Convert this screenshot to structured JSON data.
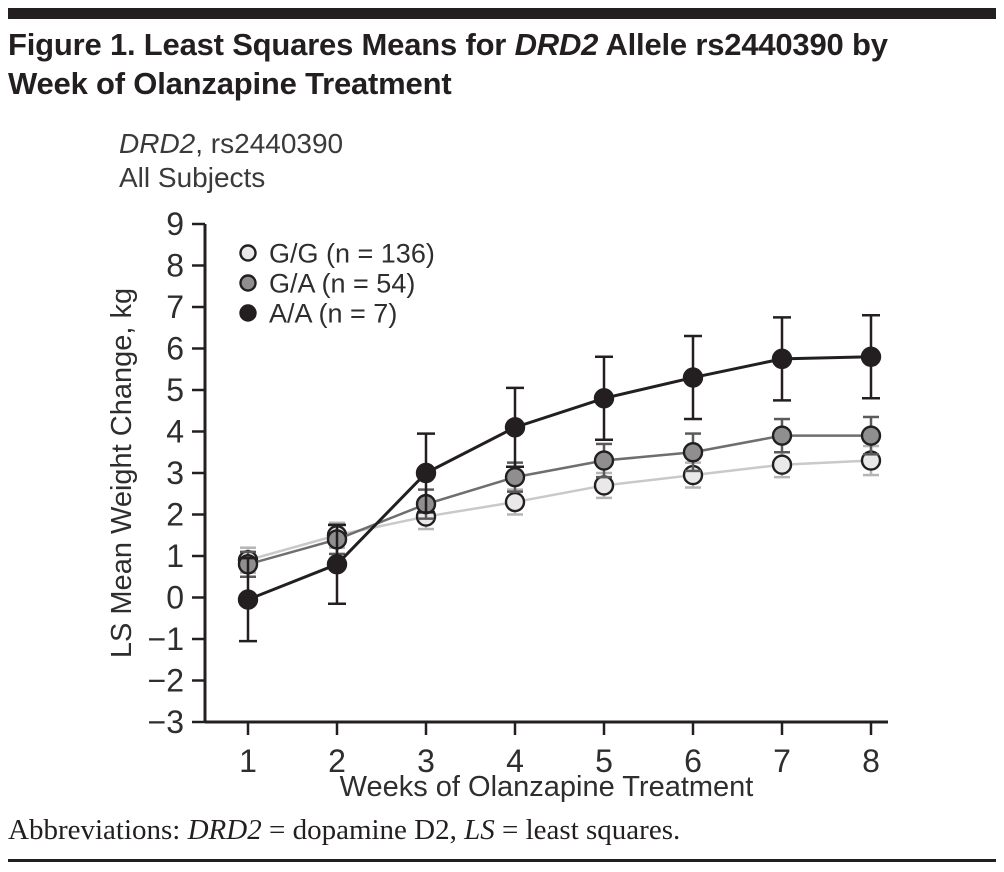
{
  "figure": {
    "title_part1": "Figure 1. Least Squares Means for ",
    "title_gene": "DRD2",
    "title_part2": " Allele rs2440390 by",
    "title_line2": "Week of Olanzapine Treatment"
  },
  "footnote": {
    "label": "Abbreviations: ",
    "gene": "DRD2",
    "mid": " = dopamine D2, ",
    "ls": "LS",
    "end": " = least squares."
  },
  "chart_data": {
    "type": "line",
    "title_gene": "DRD2",
    "title_rest": ", rs2440390",
    "subtitle": "All Subjects",
    "xlabel": "Weeks of Olanzapine Treatment",
    "ylabel": "LS Mean Weight Change, kg",
    "x": [
      1,
      2,
      3,
      4,
      5,
      6,
      7,
      8
    ],
    "ylim": [
      -3,
      9
    ],
    "ytick_step": 1,
    "grid": false,
    "legend_position": "top-left-inside",
    "error_bars": true,
    "ink_color": "#231f20",
    "series": [
      {
        "name": "G/G (n = 136)",
        "genotype": "G/G",
        "n": 136,
        "values": [
          0.9,
          1.5,
          1.95,
          2.3,
          2.7,
          2.95,
          3.2,
          3.3
        ],
        "error": [
          0.3,
          0.3,
          0.3,
          0.3,
          0.3,
          0.3,
          0.3,
          0.35
        ],
        "line_color": "#c9c9c9",
        "marker_fill": "#e9e9e9",
        "marker_stroke": "#231f20",
        "error_color": "#b5b5b5"
      },
      {
        "name": "G/A (n = 54)",
        "genotype": "G/A",
        "n": 54,
        "values": [
          0.8,
          1.4,
          2.25,
          2.9,
          3.3,
          3.5,
          3.9,
          3.9
        ],
        "error": [
          0.3,
          0.35,
          0.35,
          0.35,
          0.4,
          0.45,
          0.4,
          0.45
        ],
        "line_color": "#6e6e6e",
        "marker_fill": "#8f8f8f",
        "marker_stroke": "#231f20",
        "error_color": "#5a5a5a"
      },
      {
        "name": "A/A (n = 7)",
        "genotype": "A/A",
        "n": 7,
        "values": [
          -0.05,
          0.8,
          3.0,
          4.1,
          4.8,
          5.3,
          5.75,
          5.8
        ],
        "error": [
          1.0,
          0.95,
          0.95,
          0.95,
          1.0,
          1.0,
          1.0,
          1.0
        ],
        "line_color": "#231f20",
        "marker_fill": "#231f20",
        "marker_stroke": "#231f20",
        "error_color": "#231f20"
      }
    ]
  }
}
